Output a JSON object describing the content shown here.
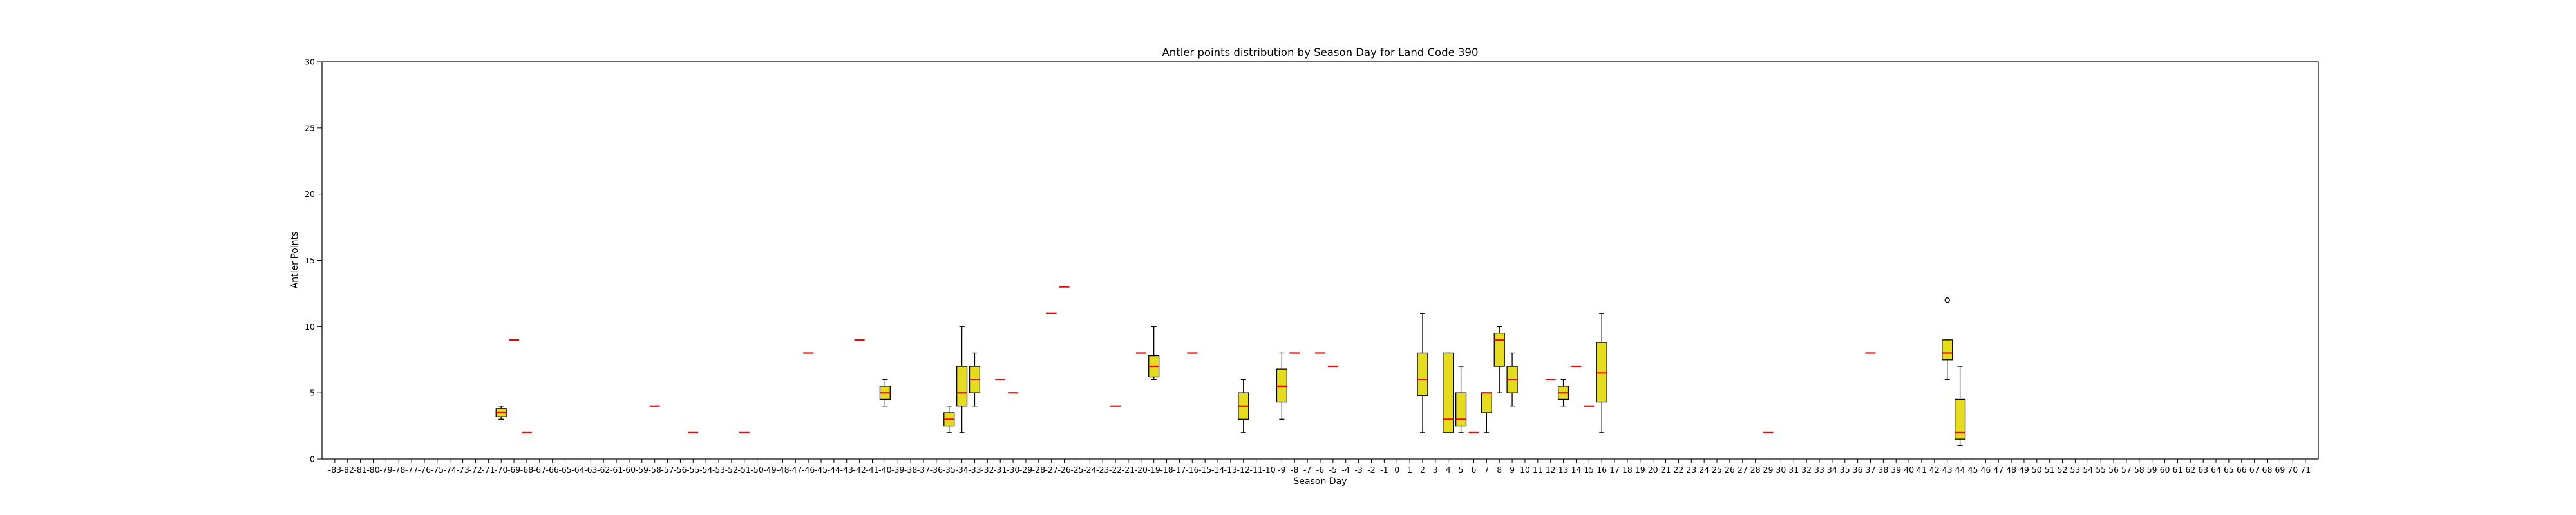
{
  "chart_data": {
    "type": "box",
    "title": "Antler points distribution by Season Day for Land Code 390",
    "xlabel": "Season Day",
    "ylabel": "Antler Points",
    "ylim": [
      0,
      30
    ],
    "yticks": [
      0,
      5,
      10,
      15,
      20,
      25,
      30
    ],
    "x_categories": [
      -83,
      -82,
      -81,
      -80,
      -79,
      -78,
      -77,
      -76,
      -75,
      -74,
      -73,
      -72,
      -71,
      -70,
      -69,
      -68,
      -67,
      -66,
      -65,
      -64,
      -63,
      -62,
      -61,
      -60,
      -59,
      -58,
      -57,
      -56,
      -55,
      -54,
      -53,
      -52,
      -51,
      -50,
      -49,
      -48,
      -47,
      -46,
      -45,
      -44,
      -43,
      -42,
      -41,
      -40,
      -39,
      -38,
      -37,
      -36,
      -35,
      -34,
      -33,
      -32,
      -31,
      -30,
      -29,
      -28,
      -27,
      -26,
      -25,
      -24,
      -23,
      -22,
      -21,
      -20,
      -19,
      -18,
      -17,
      -16,
      -15,
      -14,
      -13,
      -12,
      -11,
      -10,
      -9,
      -8,
      -7,
      -6,
      -5,
      -4,
      -3,
      -2,
      -1,
      0,
      1,
      2,
      3,
      4,
      5,
      6,
      7,
      8,
      9,
      10,
      11,
      12,
      13,
      14,
      15,
      16,
      17,
      18,
      19,
      20,
      21,
      22,
      23,
      24,
      25,
      26,
      27,
      28,
      29,
      30,
      31,
      32,
      33,
      34,
      35,
      36,
      37,
      38,
      39,
      40,
      41,
      42,
      43,
      44,
      45,
      46,
      47,
      48,
      49,
      50,
      51,
      52,
      53,
      54,
      55,
      56,
      57,
      58,
      59,
      60,
      61,
      62,
      63,
      64,
      65,
      66,
      67,
      68,
      69,
      70,
      71
    ],
    "grid": false,
    "colors": {
      "box_fill": "#e6dc1e",
      "box_edge": "#000000",
      "median": "#ff0000",
      "outlier": "#000000"
    },
    "boxes": [
      {
        "day": -70,
        "whislo": 3,
        "q1": 3.2,
        "med": 3.5,
        "q3": 3.8,
        "whishi": 4,
        "fliers": []
      },
      {
        "day": -69,
        "whislo": 9,
        "q1": 9,
        "med": 9,
        "q3": 9,
        "whishi": 9,
        "fliers": []
      },
      {
        "day": -68,
        "whislo": 2,
        "q1": 2,
        "med": 2,
        "q3": 2,
        "whishi": 2,
        "fliers": []
      },
      {
        "day": -58,
        "whislo": 4,
        "q1": 4,
        "med": 4,
        "q3": 4,
        "whishi": 4,
        "fliers": []
      },
      {
        "day": -55,
        "whislo": 2,
        "q1": 2,
        "med": 2,
        "q3": 2,
        "whishi": 2,
        "fliers": []
      },
      {
        "day": -51,
        "whislo": 2,
        "q1": 2,
        "med": 2,
        "q3": 2,
        "whishi": 2,
        "fliers": []
      },
      {
        "day": -46,
        "whislo": 8,
        "q1": 8,
        "med": 8,
        "q3": 8,
        "whishi": 8,
        "fliers": []
      },
      {
        "day": -42,
        "whislo": 9,
        "q1": 9,
        "med": 9,
        "q3": 9,
        "whishi": 9,
        "fliers": []
      },
      {
        "day": -40,
        "whislo": 4,
        "q1": 4.5,
        "med": 5,
        "q3": 5.5,
        "whishi": 6,
        "fliers": []
      },
      {
        "day": -35,
        "whislo": 2,
        "q1": 2.5,
        "med": 3,
        "q3": 3.5,
        "whishi": 4,
        "fliers": []
      },
      {
        "day": -34,
        "whislo": 2,
        "q1": 4,
        "med": 5,
        "q3": 7,
        "whishi": 10,
        "fliers": []
      },
      {
        "day": -33,
        "whislo": 4,
        "q1": 5,
        "med": 6,
        "q3": 7,
        "whishi": 8,
        "fliers": []
      },
      {
        "day": -31,
        "whislo": 6,
        "q1": 6,
        "med": 6,
        "q3": 6,
        "whishi": 6,
        "fliers": []
      },
      {
        "day": -30,
        "whislo": 5,
        "q1": 5,
        "med": 5,
        "q3": 5,
        "whishi": 5,
        "fliers": []
      },
      {
        "day": -27,
        "whislo": 11,
        "q1": 11,
        "med": 11,
        "q3": 11,
        "whishi": 11,
        "fliers": []
      },
      {
        "day": -26,
        "whislo": 13,
        "q1": 13,
        "med": 13,
        "q3": 13,
        "whishi": 13,
        "fliers": []
      },
      {
        "day": -22,
        "whislo": 4,
        "q1": 4,
        "med": 4,
        "q3": 4,
        "whishi": 4,
        "fliers": []
      },
      {
        "day": -20,
        "whislo": 8,
        "q1": 8,
        "med": 8,
        "q3": 8,
        "whishi": 8,
        "fliers": []
      },
      {
        "day": -19,
        "whislo": 6,
        "q1": 6.2,
        "med": 7,
        "q3": 7.8,
        "whishi": 10,
        "fliers": []
      },
      {
        "day": -16,
        "whislo": 8,
        "q1": 8,
        "med": 8,
        "q3": 8,
        "whishi": 8,
        "fliers": []
      },
      {
        "day": -12,
        "whislo": 2,
        "q1": 3,
        "med": 4,
        "q3": 5,
        "whishi": 6,
        "fliers": []
      },
      {
        "day": -9,
        "whislo": 3,
        "q1": 4.3,
        "med": 5.5,
        "q3": 6.8,
        "whishi": 8,
        "fliers": []
      },
      {
        "day": -8,
        "whislo": 8,
        "q1": 8,
        "med": 8,
        "q3": 8,
        "whishi": 8,
        "fliers": []
      },
      {
        "day": -6,
        "whislo": 8,
        "q1": 8,
        "med": 8,
        "q3": 8,
        "whishi": 8,
        "fliers": []
      },
      {
        "day": -5,
        "whislo": 7,
        "q1": 7,
        "med": 7,
        "q3": 7,
        "whishi": 7,
        "fliers": []
      },
      {
        "day": 2,
        "whislo": 2,
        "q1": 4.8,
        "med": 6,
        "q3": 8,
        "whishi": 11,
        "fliers": []
      },
      {
        "day": 4,
        "whislo": 2,
        "q1": 2,
        "med": 3,
        "q3": 8,
        "whishi": 8,
        "fliers": []
      },
      {
        "day": 5,
        "whislo": 2,
        "q1": 2.5,
        "med": 3,
        "q3": 5,
        "whishi": 7,
        "fliers": []
      },
      {
        "day": 6,
        "whislo": 2,
        "q1": 2,
        "med": 2,
        "q3": 2,
        "whishi": 2,
        "fliers": []
      },
      {
        "day": 7,
        "whislo": 2,
        "q1": 3.5,
        "med": 5,
        "q3": 5,
        "whishi": 5,
        "fliers": []
      },
      {
        "day": 8,
        "whislo": 5,
        "q1": 7,
        "med": 9,
        "q3": 9.5,
        "whishi": 10,
        "fliers": []
      },
      {
        "day": 9,
        "whislo": 4,
        "q1": 5,
        "med": 6,
        "q3": 7,
        "whishi": 8,
        "fliers": []
      },
      {
        "day": 12,
        "whislo": 6,
        "q1": 6,
        "med": 6,
        "q3": 6,
        "whishi": 6,
        "fliers": []
      },
      {
        "day": 13,
        "whislo": 4,
        "q1": 4.5,
        "med": 5,
        "q3": 5.5,
        "whishi": 6,
        "fliers": []
      },
      {
        "day": 14,
        "whislo": 7,
        "q1": 7,
        "med": 7,
        "q3": 7,
        "whishi": 7,
        "fliers": []
      },
      {
        "day": 15,
        "whislo": 4,
        "q1": 4,
        "med": 4,
        "q3": 4,
        "whishi": 4,
        "fliers": []
      },
      {
        "day": 16,
        "whislo": 2,
        "q1": 4.3,
        "med": 6.5,
        "q3": 8.8,
        "whishi": 11,
        "fliers": []
      },
      {
        "day": 29,
        "whislo": 2,
        "q1": 2,
        "med": 2,
        "q3": 2,
        "whishi": 2,
        "fliers": []
      },
      {
        "day": 37,
        "whislo": 8,
        "q1": 8,
        "med": 8,
        "q3": 8,
        "whishi": 8,
        "fliers": []
      },
      {
        "day": 43,
        "whislo": 6,
        "q1": 7.5,
        "med": 8,
        "q3": 9,
        "whishi": 9,
        "fliers": [
          12
        ]
      },
      {
        "day": 44,
        "whislo": 1,
        "q1": 1.5,
        "med": 2,
        "q3": 4.5,
        "whishi": 7,
        "fliers": []
      }
    ]
  }
}
